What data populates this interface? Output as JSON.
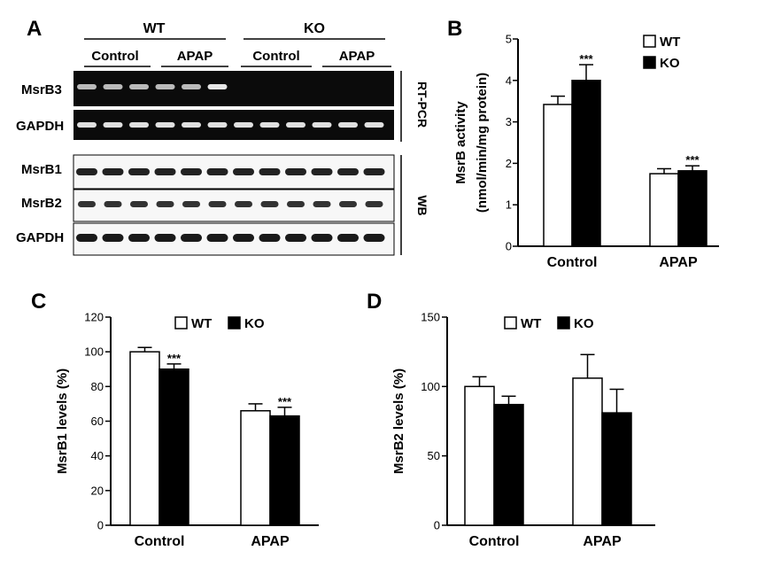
{
  "panels": {
    "a": "A",
    "b": "B",
    "c": "C",
    "d": "D"
  },
  "blot": {
    "genotypes": [
      "WT",
      "KO"
    ],
    "treatments": [
      "Control",
      "APAP",
      "Control",
      "APAP"
    ],
    "rows": [
      "MsrB3",
      "GAPDH",
      "MsrB1",
      "MsrB2",
      "GAPDH"
    ],
    "methods": [
      "RT-PCR",
      "WB"
    ]
  },
  "colors": {
    "wt": "#ffffff",
    "ko": "#000000",
    "band": "#e6e6e6",
    "lane_bg": "#0b0b0b"
  },
  "chart_data": [
    {
      "id": "B",
      "type": "bar",
      "categories": [
        "Control",
        "APAP"
      ],
      "series": [
        {
          "name": "WT",
          "values": [
            3.42,
            1.75
          ],
          "errors": [
            0.2,
            0.12
          ]
        },
        {
          "name": "KO",
          "values": [
            4.0,
            1.82
          ],
          "errors": [
            0.38,
            0.12
          ]
        }
      ],
      "significance": [
        [
          "",
          "***"
        ],
        [
          "",
          "***"
        ]
      ],
      "ylabel": "MsrB activity",
      "ylabel2": "(nmol/min/mg protein)",
      "ylim": [
        0,
        5
      ],
      "yticks": [
        "0",
        "1",
        "2",
        "3",
        "4",
        "5"
      ],
      "legend": "top-right"
    },
    {
      "id": "C",
      "type": "bar",
      "categories": [
        "Control",
        "APAP"
      ],
      "series": [
        {
          "name": "WT",
          "values": [
            100,
            66
          ],
          "errors": [
            2.5,
            4
          ]
        },
        {
          "name": "KO",
          "values": [
            90,
            63
          ],
          "errors": [
            3,
            5
          ]
        }
      ],
      "significance": [
        [
          "",
          "***"
        ],
        [
          "",
          "***"
        ]
      ],
      "ylabel": "MsrB1 levels (%)",
      "ylabel2": "",
      "ylim": [
        0,
        120
      ],
      "yticks": [
        "0",
        "20",
        "40",
        "60",
        "80",
        "100",
        "120"
      ],
      "legend": "top"
    },
    {
      "id": "D",
      "type": "bar",
      "categories": [
        "Control",
        "APAP"
      ],
      "series": [
        {
          "name": "WT",
          "values": [
            100,
            106
          ],
          "errors": [
            7,
            17
          ]
        },
        {
          "name": "KO",
          "values": [
            87,
            81
          ],
          "errors": [
            6,
            17
          ]
        }
      ],
      "significance": [
        [
          "",
          ""
        ],
        [
          "",
          ""
        ]
      ],
      "ylabel": "MsrB2 levels (%)",
      "ylabel2": "",
      "ylim": [
        0,
        150
      ],
      "yticks": [
        "0",
        "50",
        "100",
        "150"
      ],
      "legend": "top"
    }
  ]
}
